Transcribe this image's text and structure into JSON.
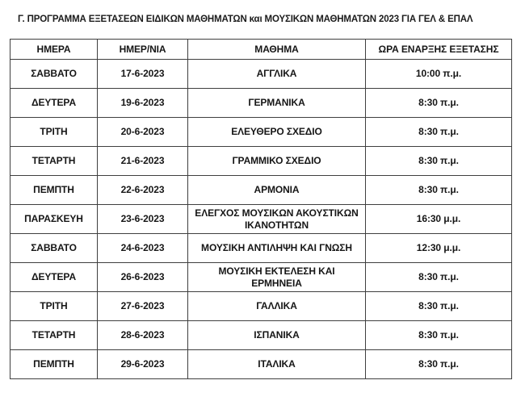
{
  "title": "Γ. ΠΡΟΓΡΑΜΜΑ ΕΞΕΤΑΣΕΩΝ ΕΙΔΙΚΩΝ ΜΑΘΗΜΑΤΩΝ και ΜΟΥΣΙΚΩΝ ΜΑΘΗΜΑΤΩΝ 2023 ΓΙΑ ΓΕΛ & ΕΠΑΛ",
  "table": {
    "headers": [
      "ΗΜΕΡΑ",
      "ΗΜΕΡ/ΝΙΑ",
      "ΜΑΘΗΜΑ",
      "ΩΡΑ ΕΝΑΡΞΗΣ ΕΞΕΤΑΣΗΣ"
    ],
    "rows": [
      {
        "day": "ΣΑΒΒΑΤΟ",
        "date": "17-6-2023",
        "subject": "ΑΓΓΛΙΚΑ",
        "time": "10:00 π.μ."
      },
      {
        "day": "ΔΕΥΤΕΡΑ",
        "date": "19-6-2023",
        "subject": "ΓΕΡΜΑΝΙΚΑ",
        "time": "8:30 π.μ."
      },
      {
        "day": "ΤΡΙΤΗ",
        "date": "20-6-2023",
        "subject": "ΕΛΕΥΘΕΡΟ ΣΧΕΔΙΟ",
        "time": "8:30 π.μ."
      },
      {
        "day": "ΤΕΤΑΡΤΗ",
        "date": "21-6-2023",
        "subject": "ΓΡΑΜΜΙΚΟ ΣΧΕΔΙΟ",
        "time": "8:30 π.μ."
      },
      {
        "day": "ΠΕΜΠΤΗ",
        "date": "22-6-2023",
        "subject": "ΑΡΜΟΝΙΑ",
        "time": "8:30 π.μ."
      },
      {
        "day": "ΠΑΡΑΣΚΕΥΗ",
        "date": "23-6-2023",
        "subject": "ΕΛΕΓΧΟΣ ΜΟΥΣΙΚΩΝ ΑΚΟΥΣΤΙΚΩΝ\nΙΚΑΝΟΤΗΤΩΝ",
        "time": "16:30 μ.μ."
      },
      {
        "day": "ΣΑΒΒΑΤΟ",
        "date": "24-6-2023",
        "subject": "ΜΟΥΣΙΚΗ ΑΝΤΙΛΗΨΗ ΚΑΙ ΓΝΩΣΗ",
        "time": "12:30 μ.μ."
      },
      {
        "day": "ΔΕΥΤΕΡΑ",
        "date": "26-6-2023",
        "subject": "ΜΟΥΣΙΚΗ ΕΚΤΕΛΕΣΗ ΚΑΙ\nΕΡΜΗΝΕΙΑ",
        "time": "8:30 π.μ."
      },
      {
        "day": "ΤΡΙΤΗ",
        "date": "27-6-2023",
        "subject": "ΓΑΛΛΙΚΑ",
        "time": "8:30 π.μ."
      },
      {
        "day": "ΤΕΤΑΡΤΗ",
        "date": "28-6-2023",
        "subject": "ΙΣΠΑΝΙΚΑ",
        "time": "8:30 π.μ."
      },
      {
        "day": "ΠΕΜΠΤΗ",
        "date": "29-6-2023",
        "subject": "ΙΤΑΛΙΚΑ",
        "time": "8:30 π.μ."
      }
    ]
  },
  "colors": {
    "text": "#1b1b1b",
    "border": "#3f3f3f",
    "background": "#ffffff"
  }
}
